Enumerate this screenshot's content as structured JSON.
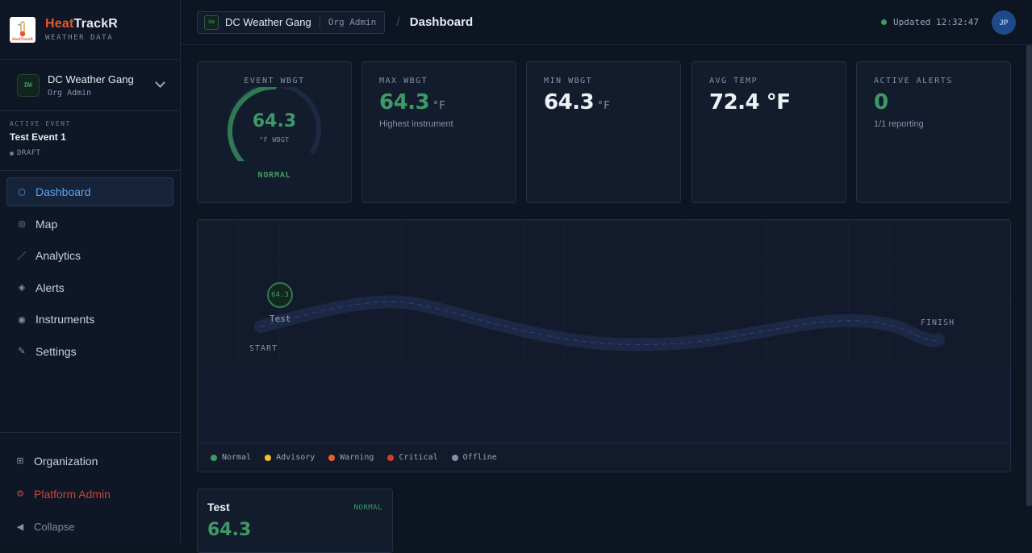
{
  "brand": {
    "heat": "Heat",
    "trackr": "TrackR",
    "subtitle": "WEATHER DATA",
    "logo_text": "HeatTrackR"
  },
  "org": {
    "badge": "DW",
    "name": "DC Weather Gang",
    "role": "Org Admin"
  },
  "active_event": {
    "label": "ACTIVE EVENT",
    "name": "Test Event 1",
    "status": "DRAFT"
  },
  "nav": {
    "items": [
      {
        "label": "Dashboard",
        "icon": "dashboard-icon",
        "active": true
      },
      {
        "label": "Map",
        "icon": "map-icon"
      },
      {
        "label": "Analytics",
        "icon": "analytics-icon"
      },
      {
        "label": "Alerts",
        "icon": "alerts-icon"
      },
      {
        "label": "Instruments",
        "icon": "instruments-icon"
      },
      {
        "label": "Settings",
        "icon": "settings-icon"
      }
    ]
  },
  "sidebar_bottom": {
    "organization": "Organization",
    "platform_admin": "Platform Admin",
    "collapse": "Collapse"
  },
  "topbar": {
    "org_badge": "DW",
    "org_name": "DC Weather Gang",
    "org_role": "Org Admin",
    "separator": "/",
    "page_title": "Dashboard",
    "updated": "Updated 12:32:47",
    "avatar": "JP"
  },
  "cards": {
    "event_wbgt": {
      "label": "EVENT WBGT",
      "value": "64.3",
      "unit": "°F WBGT",
      "status": "NORMAL",
      "gauge_fraction": 0.5
    },
    "max_wbgt": {
      "label": "MAX WBGT",
      "value": "64.3",
      "unit": "°F",
      "sub": "Highest instrument"
    },
    "min_wbgt": {
      "label": "MIN WBGT",
      "value": "64.3",
      "unit": "°F"
    },
    "avg_temp": {
      "label": "AVG TEMP",
      "value": "72.4 °F"
    },
    "active_alerts": {
      "label": "ACTIVE ALERTS",
      "value": "0",
      "sub": "1/1 reporting"
    }
  },
  "map": {
    "start": "START",
    "finish": "FINISH",
    "sensor": {
      "name": "Test",
      "value": "64.3"
    },
    "legend": [
      {
        "label": "Normal",
        "color": "#3d9a67"
      },
      {
        "label": "Advisory",
        "color": "#f2c12e"
      },
      {
        "label": "Warning",
        "color": "#e8622c"
      },
      {
        "label": "Critical",
        "color": "#d93a2b"
      },
      {
        "label": "Offline",
        "color": "#8391a8"
      }
    ]
  },
  "instrument_card": {
    "name": "Test",
    "status": "NORMAL",
    "value": "64.3"
  },
  "colors": {
    "accent": "#5aa3f0",
    "normal": "#3d9a67",
    "brand": "#e4572e"
  }
}
